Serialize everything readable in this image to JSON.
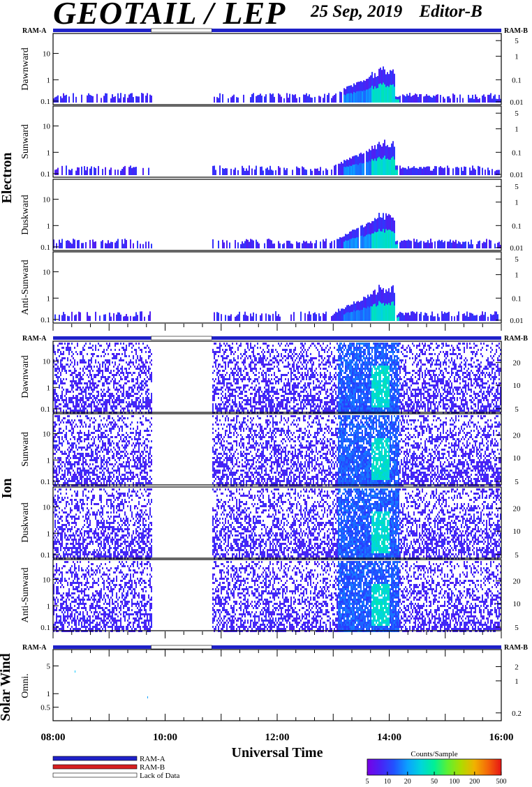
{
  "header": {
    "title": "GEOTAIL / LEP",
    "date": "25 Sep, 2019",
    "editor": "Editor-B"
  },
  "chart_data": {
    "type": "heatmap",
    "xlabel": "Universal Time",
    "x_ticks": [
      "08:00",
      "10:00",
      "12:00",
      "14:00",
      "16:00"
    ],
    "x_range": [
      "08:00",
      "16:00"
    ],
    "ram_labels": {
      "left": "RAM-A",
      "right": "RAM-B"
    },
    "data_gaps": [
      [
        "09:45",
        "10:50"
      ]
    ],
    "groups": [
      {
        "name": "Electron",
        "left_ticks": [
          "10",
          "1",
          "0.1"
        ],
        "right_ticks": [
          "5",
          "1",
          "0.1",
          "0.01"
        ],
        "panels": [
          "Dawnward",
          "Sunward",
          "Duskward",
          "Anti-Sunward"
        ],
        "activity": [
          {
            "start": "13:00",
            "end": "13:45",
            "peak_counts_per_sample": 50
          },
          {
            "start": "13:30",
            "end": "13:45",
            "peak_counts_per_sample": 50
          }
        ]
      },
      {
        "name": "Ion",
        "left_ticks": [
          "10",
          "1",
          "0.1"
        ],
        "right_ticks": [
          "20",
          "10",
          "5"
        ],
        "panels": [
          "Dawnward",
          "Sunward",
          "Duskward",
          "Anti-Sunward"
        ],
        "activity": [
          {
            "start": "13:05",
            "end": "13:50",
            "peak_counts_per_sample": 30
          }
        ]
      },
      {
        "name": "Solar Wind",
        "left_ticks": [
          "5",
          "1",
          "0.5"
        ],
        "right_ticks": [
          "2",
          "1",
          "0.2"
        ],
        "panels": [
          "Omni."
        ]
      }
    ],
    "legend": [
      {
        "label": "RAM-A",
        "color": "#1f21c8"
      },
      {
        "label": "RAM-B",
        "color": "#d61f1f"
      },
      {
        "label": "Lack of Data",
        "color": "#ffffff"
      }
    ],
    "colorbar": {
      "title": "Counts/Sample",
      "ticks": [
        "5",
        "10",
        "20",
        "50",
        "100",
        "200",
        "500"
      ],
      "range": [
        5,
        500
      ],
      "scale": "log"
    }
  }
}
